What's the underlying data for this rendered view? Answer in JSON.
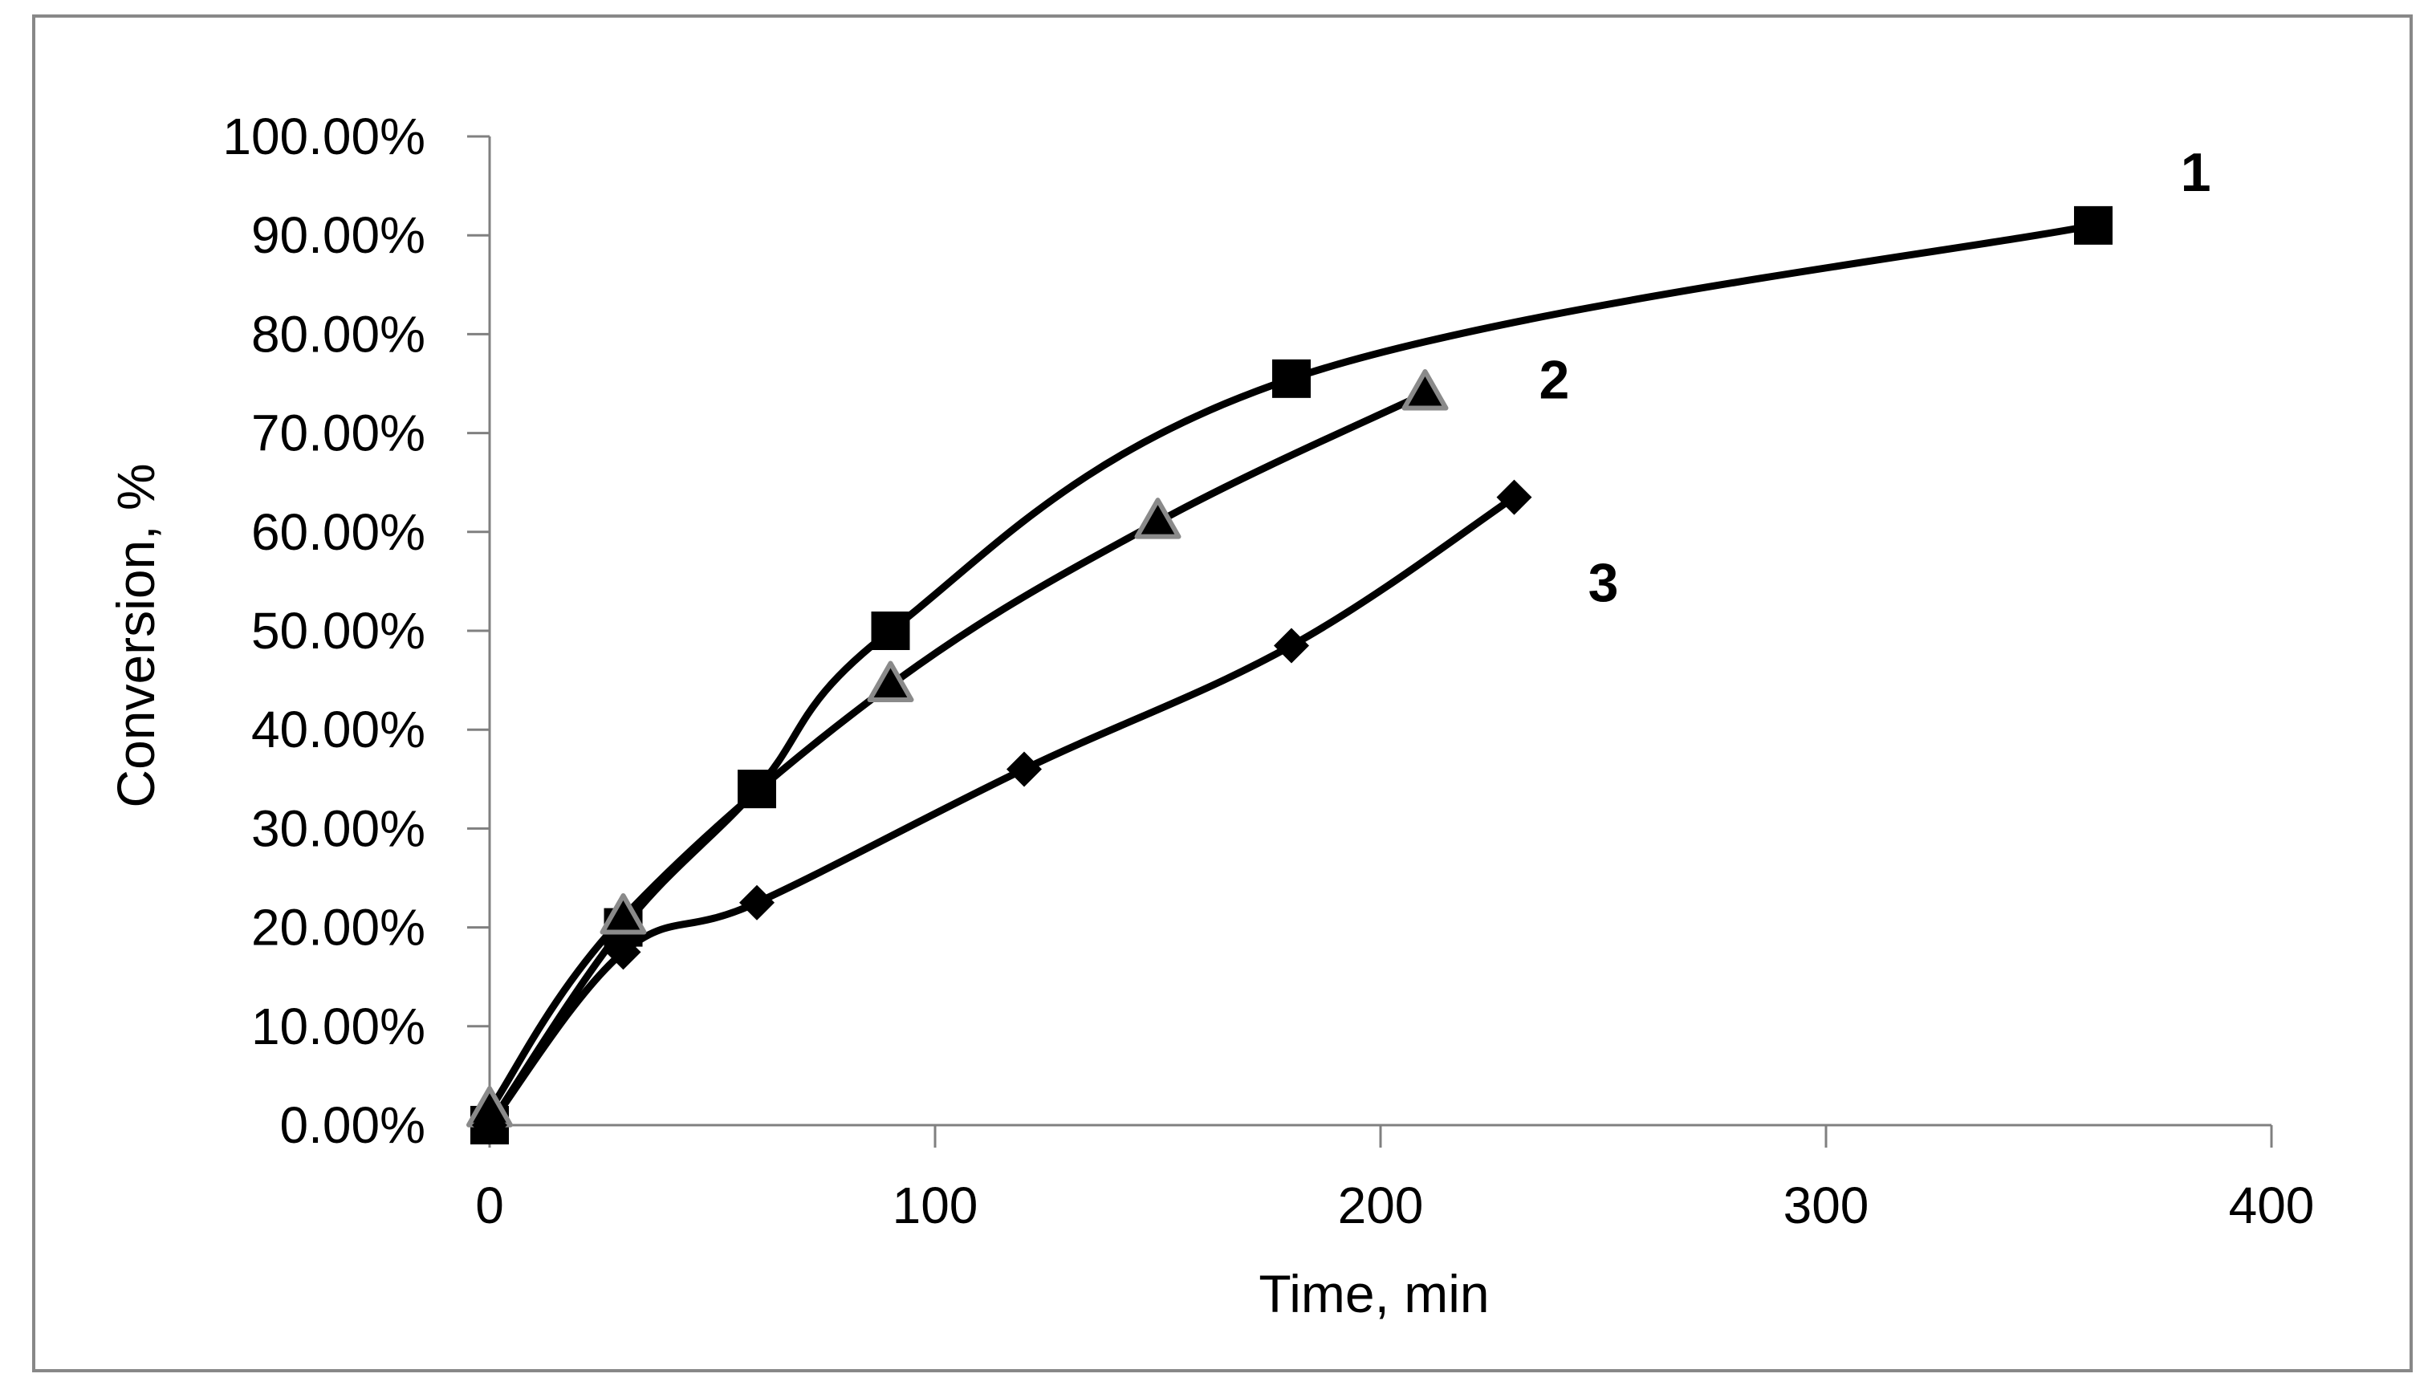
{
  "chart_data": {
    "type": "scatter",
    "title": "",
    "xlabel": "Time, min",
    "ylabel": "Conversion, %",
    "xlim": [
      0,
      400
    ],
    "ylim": [
      0,
      1
    ],
    "x_ticks": [
      0,
      100,
      200,
      300,
      400
    ],
    "x_tick_labels": [
      "0",
      "100",
      "200",
      "300",
      "400"
    ],
    "y_ticks": [
      0,
      0.1,
      0.2,
      0.3,
      0.4,
      0.5,
      0.6,
      0.7,
      0.8,
      0.9,
      1.0
    ],
    "y_tick_labels": [
      "0.00%",
      "10.00%",
      "20.00%",
      "30.00%",
      "40.00%",
      "50.00%",
      "60.00%",
      "70.00%",
      "80.00%",
      "90.00%",
      "100.00%"
    ],
    "grid": false,
    "legend": "none",
    "series": [
      {
        "name": "1",
        "label": "1",
        "marker": "square",
        "marker_color": "#000000",
        "line_color": "#000000",
        "x": [
          0,
          30,
          60,
          90,
          180,
          360
        ],
        "y": [
          0.0,
          0.2,
          0.34,
          0.5,
          0.755,
          0.91
        ],
        "label_anchor": [
          383,
          0.945
        ]
      },
      {
        "name": "2",
        "label": "2",
        "marker": "triangle",
        "marker_color": "#4d4d4d",
        "line_color": "#000000",
        "x": [
          0,
          30,
          90,
          150,
          210
        ],
        "y": [
          0.015,
          0.21,
          0.445,
          0.61,
          0.74
        ],
        "label_anchor": [
          239,
          0.735
        ]
      },
      {
        "name": "3",
        "label": "3",
        "marker": "diamond",
        "marker_color": "#000000",
        "line_color": "#000000",
        "x": [
          0,
          30,
          60,
          120,
          180,
          230
        ],
        "y": [
          0.0,
          0.175,
          0.225,
          0.36,
          0.485,
          0.635
        ],
        "label_anchor": [
          250,
          0.53
        ]
      }
    ]
  }
}
